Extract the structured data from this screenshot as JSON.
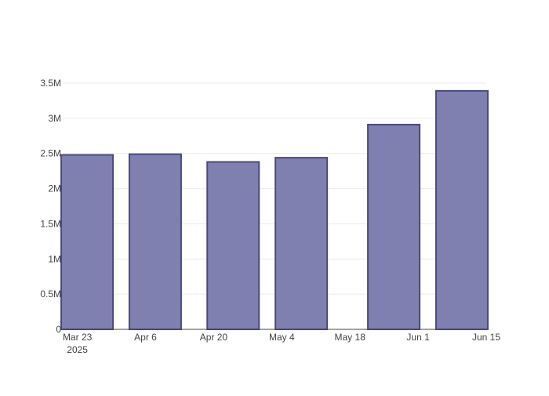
{
  "chart_data": {
    "type": "bar",
    "x_axis_type": "date",
    "categories": [
      "2025-03-25",
      "2025-04-08",
      "2025-04-24",
      "2025-05-08",
      "2025-05-27",
      "2025-06-10"
    ],
    "values": [
      2480000,
      2490000,
      2380000,
      2440000,
      2910000,
      3390000
    ],
    "ylim": [
      0,
      3500000
    ],
    "xlim": [
      "2025-03-20",
      "2025-06-15"
    ],
    "yticks": [
      {
        "value": 0,
        "label": "0"
      },
      {
        "value": 500000,
        "label": "0.5M"
      },
      {
        "value": 1000000,
        "label": "1M"
      },
      {
        "value": 1500000,
        "label": "1.5M"
      },
      {
        "value": 2000000,
        "label": "2M"
      },
      {
        "value": 2500000,
        "label": "2.5M"
      },
      {
        "value": 3000000,
        "label": "3M"
      },
      {
        "value": 3500000,
        "label": "3.5M"
      }
    ],
    "xticks": [
      {
        "date": "2025-03-23",
        "label": "Mar 23",
        "sublabel": "2025"
      },
      {
        "date": "2025-04-06",
        "label": "Apr 6"
      },
      {
        "date": "2025-04-20",
        "label": "Apr 20"
      },
      {
        "date": "2025-05-04",
        "label": "May 4"
      },
      {
        "date": "2025-05-18",
        "label": "May 18"
      },
      {
        "date": "2025-06-01",
        "label": "Jun 1"
      },
      {
        "date": "2025-06-15",
        "label": "Jun 15"
      }
    ],
    "grid": true,
    "colors": {
      "bar_fill": "#7f7fb0",
      "bar_stroke": "#4a4a80",
      "grid": "#ebebeb",
      "axis": "#444444",
      "text": "#444444"
    }
  }
}
